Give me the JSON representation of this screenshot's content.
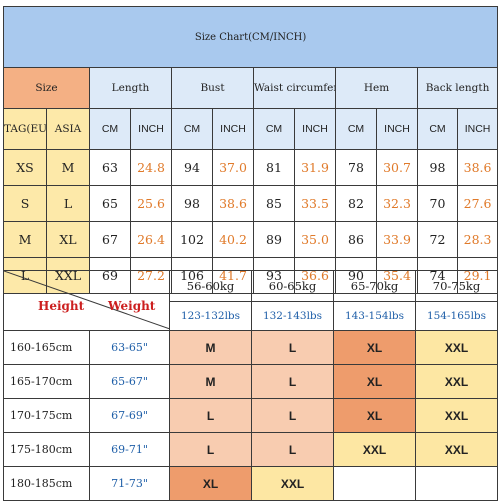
{
  "size_chart": {
    "title": "Size Chart(CM/INCH)",
    "headers": {
      "size": "Size",
      "length": "Length",
      "bust": "Bust",
      "waist": "Waist circumference",
      "hem": "Hem",
      "back_length": "Back length"
    },
    "sub": {
      "tag": "TAG(EU)",
      "asia": "ASIA",
      "cm": "CM",
      "inch": "INCH"
    },
    "rows": [
      {
        "eu": "XS",
        "asia": "M",
        "length_cm": "63",
        "length_in": "24.8",
        "bust_cm": "94",
        "bust_in": "37.0",
        "waist_cm": "81",
        "waist_in": "31.9",
        "hem_cm": "78",
        "hem_in": "30.7",
        "back_cm": "98",
        "back_in": "38.6"
      },
      {
        "eu": "S",
        "asia": "L",
        "length_cm": "65",
        "length_in": "25.6",
        "bust_cm": "98",
        "bust_in": "38.6",
        "waist_cm": "85",
        "waist_in": "33.5",
        "hem_cm": "82",
        "hem_in": "32.3",
        "back_cm": "70",
        "back_in": "27.6"
      },
      {
        "eu": "M",
        "asia": "XL",
        "length_cm": "67",
        "length_in": "26.4",
        "bust_cm": "102",
        "bust_in": "40.2",
        "waist_cm": "89",
        "waist_in": "35.0",
        "hem_cm": "86",
        "hem_in": "33.9",
        "back_cm": "72",
        "back_in": "28.3"
      },
      {
        "eu": "L",
        "asia": "XXL",
        "length_cm": "69",
        "length_in": "27.2",
        "bust_cm": "106",
        "bust_in": "41.7",
        "waist_cm": "93",
        "waist_in": "36.6",
        "hem_cm": "90",
        "hem_in": "35.4",
        "back_cm": "74",
        "back_in": "29.1"
      }
    ]
  },
  "fit_table": {
    "height_label": "Height",
    "weight_label": "Weight",
    "weight_ranges": [
      {
        "kg": "56-60kg",
        "lbs": "123-132lbs"
      },
      {
        "kg": "60-65kg",
        "lbs": "132-143lbs"
      },
      {
        "kg": "65-70kg",
        "lbs": "143-154lbs"
      },
      {
        "kg": "70-75kg",
        "lbs": "154-165lbs"
      }
    ],
    "rows": [
      {
        "height": "160-165cm",
        "inches": "63-65\"",
        "fits": [
          "M",
          "L",
          "XL",
          "XXL"
        ]
      },
      {
        "height": "165-170cm",
        "inches": "65-67\"",
        "fits": [
          "M",
          "L",
          "XL",
          "XXL"
        ]
      },
      {
        "height": "170-175cm",
        "inches": "67-69\"",
        "fits": [
          "L",
          "L",
          "XL",
          "XXL"
        ]
      },
      {
        "height": "175-180cm",
        "inches": "69-71\"",
        "fits": [
          "L",
          "L",
          "XXL",
          "XXL"
        ]
      },
      {
        "height": "180-185cm",
        "inches": "71-73\"",
        "fits": [
          "XL",
          "XXL",
          "",
          ""
        ]
      }
    ],
    "colors": {
      "light": "#f8ccb0",
      "mid": "#f3b591",
      "dark": "#ee9c6c",
      "yellow": "#fde7a3"
    }
  }
}
